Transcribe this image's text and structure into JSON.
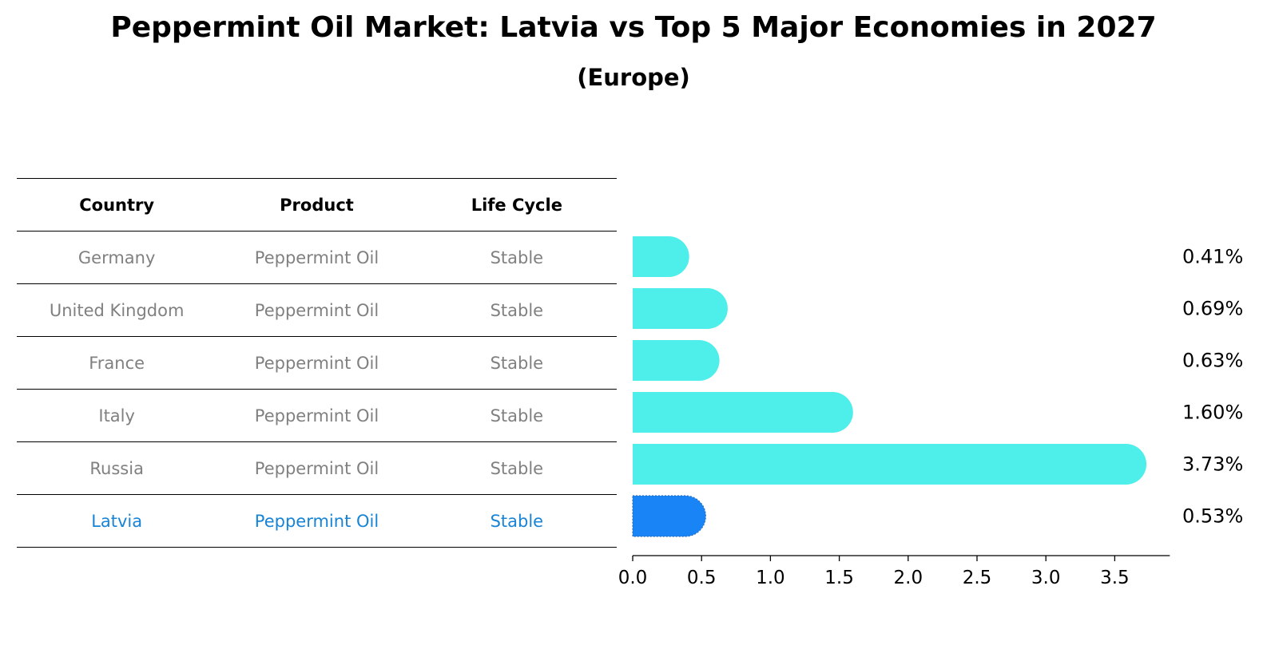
{
  "title": "Peppermint Oil Market: Latvia vs Top 5 Major Economies in 2027",
  "subtitle": "(Europe)",
  "table": {
    "headers": [
      "Country",
      "Product",
      "Life Cycle"
    ],
    "rows": [
      {
        "country": "Germany",
        "product": "Peppermint Oil",
        "life_cycle": "Stable"
      },
      {
        "country": "United Kingdom",
        "product": "Peppermint Oil",
        "life_cycle": "Stable"
      },
      {
        "country": "France",
        "product": "Peppermint Oil",
        "life_cycle": "Stable"
      },
      {
        "country": "Italy",
        "product": "Peppermint Oil",
        "life_cycle": "Stable"
      },
      {
        "country": "Russia",
        "product": "Peppermint Oil",
        "life_cycle": "Stable"
      },
      {
        "country": "Latvia",
        "product": "Peppermint Oil",
        "life_cycle": "Stable"
      }
    ],
    "text_color": "#808080",
    "highlight_color": "#1884d6"
  },
  "chart_data": {
    "type": "bar",
    "orientation": "horizontal",
    "categories": [
      "Germany",
      "United Kingdom",
      "France",
      "Italy",
      "Russia",
      "Latvia"
    ],
    "values": [
      0.41,
      0.69,
      0.63,
      1.6,
      3.73,
      0.53
    ],
    "value_labels": [
      "0.41%",
      "0.69%",
      "0.63%",
      "1.60%",
      "3.73%",
      "0.53%"
    ],
    "xlim": [
      0,
      3.9
    ],
    "xticks": [
      0.0,
      0.5,
      1.0,
      1.5,
      2.0,
      2.5,
      3.0,
      3.5
    ],
    "xtick_labels": [
      "0.0",
      "0.5",
      "1.0",
      "1.5",
      "2.0",
      "2.5",
      "3.0",
      "3.5"
    ],
    "colors": {
      "bar": "#4eeeea",
      "highlight": "#1884f6"
    },
    "highlight_category": "Latvia",
    "grid": false
  }
}
